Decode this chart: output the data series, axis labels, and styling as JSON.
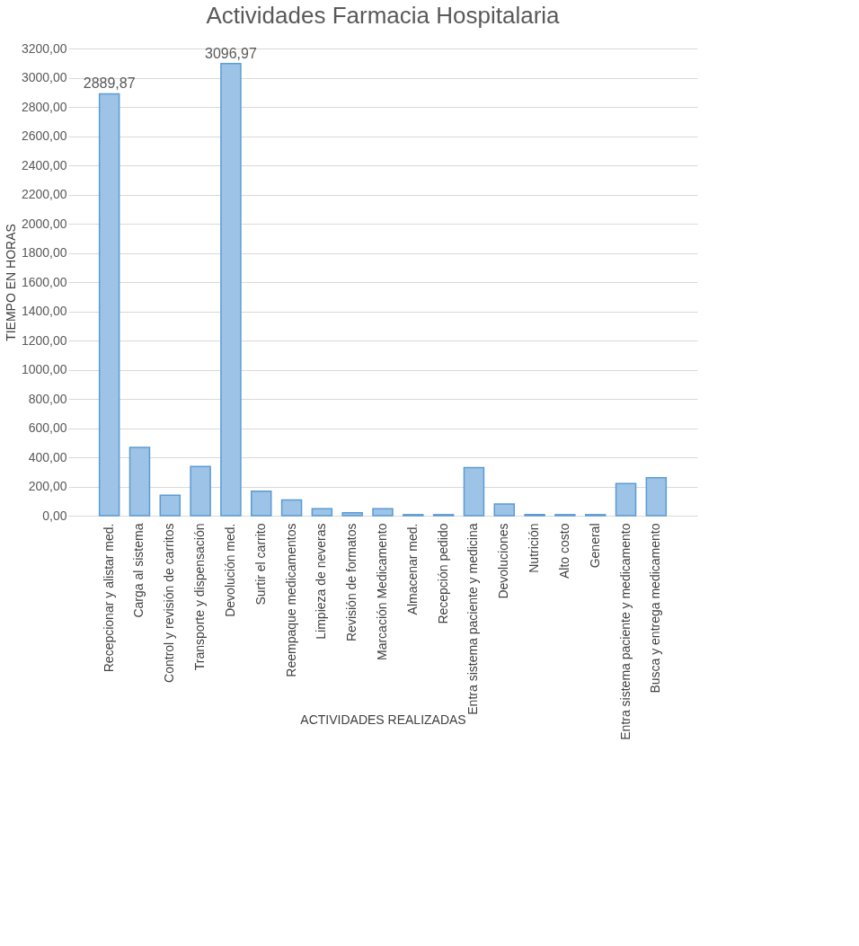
{
  "chart_data": {
    "type": "bar",
    "title": "Actividades  Farmacia  Hospitalaria",
    "xlabel": "ACTIVIDADES REALIZADAS",
    "ylabel": "TIEMPO EN HORAS",
    "categories": [
      "Recepcionar y alistar med.",
      "Carga al sistema",
      "Control y revisión de carritos",
      "Transporte y dispensación",
      "Devolución med.",
      "Surtir el carrito",
      "Reempaque medicamentos",
      "Limpieza de neveras",
      "Revisión de formatos",
      "Marcación Medicamento",
      "Almacenar med.",
      "Recepción pedido",
      "Entra sistema paciente y medicina",
      "Devoluciones",
      "Nutrición",
      "Alto costo",
      "General",
      "Entra sistema paciente y medicamento",
      "Busca y entrega medicamento"
    ],
    "values": [
      2889.87,
      467,
      140,
      337,
      3096.97,
      167,
      107,
      47,
      20,
      47,
      7,
      7,
      330,
      80,
      7,
      7,
      7,
      220,
      260
    ],
    "value_labels": [
      "2889,87",
      null,
      null,
      null,
      "3096,97",
      null,
      null,
      null,
      null,
      null,
      null,
      null,
      null,
      null,
      null,
      null,
      null,
      null,
      null
    ],
    "color": "#9dc3e6",
    "ylim": [
      0,
      3200
    ],
    "yticks": [
      {
        "value": 0,
        "label": "0,00"
      },
      {
        "value": 200,
        "label": "200,00"
      },
      {
        "value": 400,
        "label": "400,00"
      },
      {
        "value": 600,
        "label": "600,00"
      },
      {
        "value": 800,
        "label": "800,00"
      },
      {
        "value": 1000,
        "label": "1000,00"
      },
      {
        "value": 1200,
        "label": "1200,00"
      },
      {
        "value": 1400,
        "label": "1400,00"
      },
      {
        "value": 1600,
        "label": "1600,00"
      },
      {
        "value": 1800,
        "label": "1800,00"
      },
      {
        "value": 2000,
        "label": "2000,00"
      },
      {
        "value": 2200,
        "label": "2200,00"
      },
      {
        "value": 2400,
        "label": "2400,00"
      },
      {
        "value": 2600,
        "label": "2600,00"
      },
      {
        "value": 2800,
        "label": "2800,00"
      },
      {
        "value": 3000,
        "label": "3000,00"
      },
      {
        "value": 3200,
        "label": "3200,00"
      }
    ],
    "grid": "y"
  }
}
